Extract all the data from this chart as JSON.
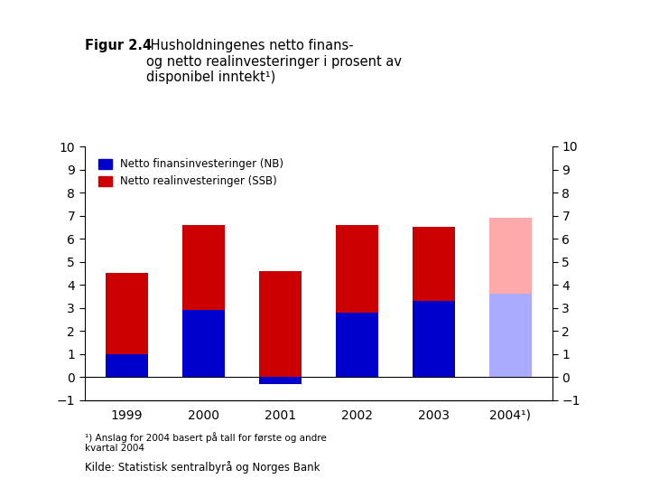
{
  "years": [
    "1999",
    "2000",
    "2001",
    "2002",
    "2003",
    "2004¹)"
  ],
  "blue_values": [
    1.0,
    2.9,
    -0.3,
    2.8,
    3.3,
    3.6
  ],
  "red_values": [
    3.5,
    3.7,
    4.6,
    3.8,
    3.2,
    3.3
  ],
  "blue_color": "#0000CC",
  "red_color": "#CC0000",
  "legend_blue": "Netto finansinvesteringer (NB)",
  "legend_red": "Netto realinvesteringer (SSB)",
  "ylim": [
    -1,
    10
  ],
  "yticks": [
    -1,
    0,
    1,
    2,
    3,
    4,
    5,
    6,
    7,
    8,
    9,
    10
  ],
  "title_bold": "Figur 2.4",
  "title_normal": " Husholdningenes netto finans-\nog netto realinvesteringer i prosent av\ndisponibel inntekt¹)",
  "footnote": "¹) Anslag for 2004 basert på tall for første og andre\nkvartal 2004",
  "source": "Kilde: Statistisk sentralbyrå og Norges Bank",
  "bar_width": 0.55
}
